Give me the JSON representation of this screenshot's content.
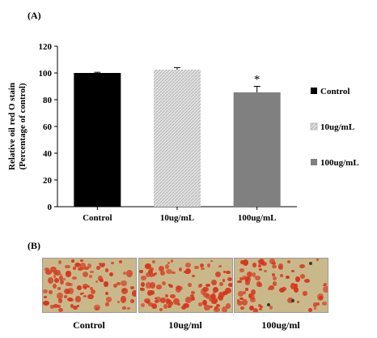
{
  "panel_a_label": "(A)",
  "panel_b_label": "(B)",
  "chart_data": {
    "type": "bar",
    "categories": [
      "Control",
      "10ug/mL",
      "100ug/mL"
    ],
    "values": [
      100,
      102.5,
      85.5
    ],
    "errors": [
      0.5,
      1.5,
      4.5
    ],
    "significance": [
      "",
      "",
      "*"
    ],
    "ylabel_line1": "Relative oil red O stain",
    "ylabel_line2": "(Percentage of control)",
    "ylim": [
      0,
      120
    ],
    "yticks": [
      0,
      20,
      40,
      60,
      80,
      100,
      120
    ],
    "legend": [
      "Control",
      "10ug/mL",
      "100ug/mL"
    ],
    "legend_position": "right",
    "grid": false,
    "fills": [
      "#000000",
      "hatch-light",
      "#808080"
    ]
  },
  "micrographs": [
    {
      "label": "Control"
    },
    {
      "label": "10ug/ml"
    },
    {
      "label": "100ug/ml"
    }
  ],
  "colors": {
    "stain": "#d8361f",
    "background": "#c9b98a"
  }
}
